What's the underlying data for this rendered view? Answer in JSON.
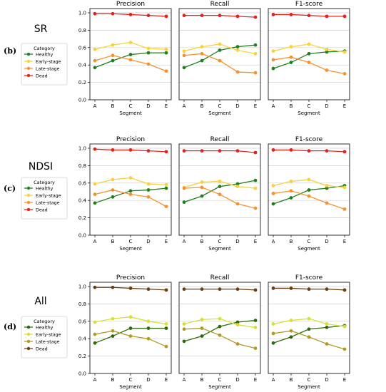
{
  "chart_data": [
    {
      "type": "line",
      "row_label": "(b)",
      "group_title": "SR",
      "legend": {
        "title": "Category",
        "entries": [
          {
            "name": "Healthy",
            "color": "#208020"
          },
          {
            "name": "Early-stage",
            "color": "#f7d23c"
          },
          {
            "name": "Late-stage",
            "color": "#f5922e"
          },
          {
            "name": "Dead",
            "color": "#e0241b"
          }
        ]
      },
      "xlabel": "Segment",
      "categories": [
        "A",
        "B",
        "C",
        "D",
        "E"
      ],
      "ylim": [
        0,
        1.0
      ],
      "yticks": [
        "0.0",
        "0.2",
        "0.4",
        "0.6",
        "0.8",
        "1.0"
      ],
      "grid": true,
      "panels": [
        {
          "title": "Precision",
          "series": [
            {
              "name": "Healthy",
              "values": [
                0.37,
                0.45,
                0.52,
                0.54,
                0.54
              ]
            },
            {
              "name": "Early-stage",
              "values": [
                0.58,
                0.63,
                0.66,
                0.59,
                0.58
              ]
            },
            {
              "name": "Late-stage",
              "values": [
                0.45,
                0.51,
                0.46,
                0.41,
                0.33
              ]
            },
            {
              "name": "Dead",
              "values": [
                0.99,
                0.99,
                0.98,
                0.97,
                0.96
              ]
            }
          ]
        },
        {
          "title": "Recall",
          "series": [
            {
              "name": "Healthy",
              "values": [
                0.37,
                0.45,
                0.57,
                0.61,
                0.63
              ]
            },
            {
              "name": "Early-stage",
              "values": [
                0.56,
                0.61,
                0.64,
                0.57,
                0.53
              ]
            },
            {
              "name": "Late-stage",
              "values": [
                0.51,
                0.53,
                0.45,
                0.32,
                0.31
              ]
            },
            {
              "name": "Dead",
              "values": [
                0.97,
                0.97,
                0.97,
                0.96,
                0.95
              ]
            }
          ]
        },
        {
          "title": "F1-score",
          "series": [
            {
              "name": "Healthy",
              "values": [
                0.36,
                0.43,
                0.53,
                0.55,
                0.56
              ]
            },
            {
              "name": "Early-stage",
              "values": [
                0.56,
                0.61,
                0.64,
                0.58,
                0.55
              ]
            },
            {
              "name": "Late-stage",
              "values": [
                0.46,
                0.49,
                0.43,
                0.34,
                0.3
              ]
            },
            {
              "name": "Dead",
              "values": [
                0.98,
                0.98,
                0.97,
                0.96,
                0.96
              ]
            }
          ]
        }
      ]
    },
    {
      "type": "line",
      "row_label": "(c)",
      "group_title": "NDSI",
      "legend": {
        "title": "Category",
        "entries": [
          {
            "name": "Healthy",
            "color": "#208020"
          },
          {
            "name": "Early-stage",
            "color": "#f7d23c"
          },
          {
            "name": "Late-stage",
            "color": "#f5922e"
          },
          {
            "name": "Dead",
            "color": "#e0241b"
          }
        ]
      },
      "xlabel": "Segment",
      "categories": [
        "A",
        "B",
        "C",
        "D",
        "E"
      ],
      "ylim": [
        0,
        1.0
      ],
      "yticks": [
        "0.0",
        "0.2",
        "0.4",
        "0.6",
        "0.8",
        "1.0"
      ],
      "grid": true,
      "panels": [
        {
          "title": "Precision",
          "series": [
            {
              "name": "Healthy",
              "values": [
                0.37,
                0.44,
                0.51,
                0.52,
                0.54
              ]
            },
            {
              "name": "Early-stage",
              "values": [
                0.59,
                0.64,
                0.66,
                0.59,
                0.58
              ]
            },
            {
              "name": "Late-stage",
              "values": [
                0.47,
                0.52,
                0.47,
                0.44,
                0.33
              ]
            },
            {
              "name": "Dead",
              "values": [
                0.99,
                0.98,
                0.98,
                0.97,
                0.96
              ]
            }
          ]
        },
        {
          "title": "Recall",
          "series": [
            {
              "name": "Healthy",
              "values": [
                0.38,
                0.45,
                0.56,
                0.59,
                0.63
              ]
            },
            {
              "name": "Early-stage",
              "values": [
                0.55,
                0.61,
                0.62,
                0.56,
                0.54
              ]
            },
            {
              "name": "Late-stage",
              "values": [
                0.54,
                0.55,
                0.47,
                0.36,
                0.31
              ]
            },
            {
              "name": "Dead",
              "values": [
                0.97,
                0.97,
                0.97,
                0.97,
                0.95
              ]
            }
          ]
        },
        {
          "title": "F1-score",
          "series": [
            {
              "name": "Healthy",
              "values": [
                0.36,
                0.43,
                0.52,
                0.54,
                0.57
              ]
            },
            {
              "name": "Early-stage",
              "values": [
                0.57,
                0.62,
                0.64,
                0.57,
                0.55
              ]
            },
            {
              "name": "Late-stage",
              "values": [
                0.48,
                0.51,
                0.45,
                0.37,
                0.3
              ]
            },
            {
              "name": "Dead",
              "values": [
                0.98,
                0.98,
                0.97,
                0.97,
                0.96
              ]
            }
          ]
        }
      ]
    },
    {
      "type": "line",
      "row_label": "(d)",
      "group_title": "All",
      "legend": {
        "title": "Category",
        "entries": [
          {
            "name": "Healthy",
            "color": "#2f6b10"
          },
          {
            "name": "Early-stage",
            "color": "#d8e034"
          },
          {
            "name": "Late-stage",
            "color": "#b39a22"
          },
          {
            "name": "Dead",
            "color": "#6b3d10"
          }
        ]
      },
      "xlabel": "Segment",
      "categories": [
        "A",
        "B",
        "C",
        "D",
        "E"
      ],
      "ylim": [
        0,
        1.0
      ],
      "yticks": [
        "0.0",
        "0.2",
        "0.4",
        "0.6",
        "0.8",
        "1.0"
      ],
      "grid": true,
      "panels": [
        {
          "title": "Precision",
          "series": [
            {
              "name": "Healthy",
              "values": [
                0.35,
                0.43,
                0.52,
                0.52,
                0.52
              ]
            },
            {
              "name": "Early-stage",
              "values": [
                0.59,
                0.63,
                0.65,
                0.6,
                0.57
              ]
            },
            {
              "name": "Late-stage",
              "values": [
                0.45,
                0.49,
                0.43,
                0.4,
                0.31
              ]
            },
            {
              "name": "Dead",
              "values": [
                0.99,
                0.99,
                0.98,
                0.97,
                0.96
              ]
            }
          ]
        },
        {
          "title": "Recall",
          "series": [
            {
              "name": "Healthy",
              "values": [
                0.37,
                0.43,
                0.54,
                0.59,
                0.61
              ]
            },
            {
              "name": "Early-stage",
              "values": [
                0.57,
                0.62,
                0.63,
                0.56,
                0.53
              ]
            },
            {
              "name": "Late-stage",
              "values": [
                0.51,
                0.52,
                0.44,
                0.34,
                0.29
              ]
            },
            {
              "name": "Dead",
              "values": [
                0.97,
                0.97,
                0.97,
                0.97,
                0.96
              ]
            }
          ]
        },
        {
          "title": "F1-score",
          "series": [
            {
              "name": "Healthy",
              "values": [
                0.35,
                0.42,
                0.51,
                0.53,
                0.55
              ]
            },
            {
              "name": "Early-stage",
              "values": [
                0.57,
                0.61,
                0.63,
                0.57,
                0.54
              ]
            },
            {
              "name": "Late-stage",
              "values": [
                0.46,
                0.49,
                0.42,
                0.34,
                0.28
              ]
            },
            {
              "name": "Dead",
              "values": [
                0.98,
                0.98,
                0.97,
                0.97,
                0.96
              ]
            }
          ]
        }
      ]
    }
  ]
}
